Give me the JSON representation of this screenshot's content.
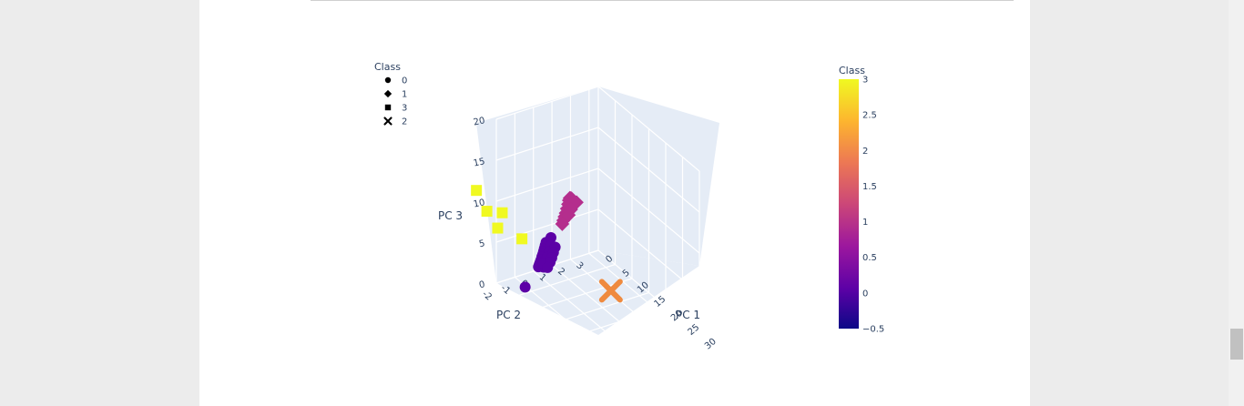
{
  "chart_data": {
    "type": "scatter3d",
    "axes": {
      "x": {
        "label": "PC 1",
        "ticks": [
          "0",
          "5",
          "10",
          "15",
          "20",
          "25",
          "30"
        ]
      },
      "y": {
        "label": "PC 2",
        "ticks": [
          "-2",
          "-1",
          "0",
          "1",
          "2",
          "3"
        ]
      },
      "z": {
        "label": "PC 3",
        "ticks": [
          "0",
          "5",
          "10",
          "15",
          "20"
        ]
      }
    },
    "legend": {
      "title": "Class",
      "entries": [
        {
          "label": "0",
          "symbol": "circle"
        },
        {
          "label": "1",
          "symbol": "diamond"
        },
        {
          "label": "3",
          "symbol": "square"
        },
        {
          "label": "2",
          "symbol": "x"
        }
      ],
      "placement": "top-left"
    },
    "colorbar": {
      "title": "Class",
      "range": [
        -0.5,
        3
      ],
      "ticks": [
        "3",
        "2.5",
        "2",
        "1.5",
        "1",
        "0.5",
        "0",
        "−0.5"
      ],
      "colors": [
        "#0d0887",
        "#5c01a6",
        "#9c179e",
        "#cc4778",
        "#ed7953",
        "#fdb42f",
        "#f0f921"
      ]
    },
    "series": [
      {
        "name": "0",
        "symbol": "circle",
        "color": "#5c01a6",
        "points": [
          [
            1.0,
            0.5,
            3.5
          ],
          [
            1.3,
            0.4,
            3.3
          ],
          [
            1.6,
            0.3,
            3.1
          ],
          [
            1.9,
            0.2,
            2.9
          ],
          [
            2.2,
            0.1,
            2.7
          ],
          [
            2.5,
            0.0,
            2.6
          ],
          [
            2.8,
            -0.1,
            2.4
          ],
          [
            3.1,
            -0.2,
            2.3
          ],
          [
            3.4,
            -0.3,
            2.2
          ],
          [
            3.7,
            -0.4,
            2.1
          ],
          [
            1.2,
            0.7,
            3.0
          ],
          [
            1.8,
            0.5,
            2.6
          ],
          [
            2.4,
            0.3,
            2.3
          ],
          [
            3.0,
            0.1,
            2.0
          ],
          [
            3.6,
            -0.1,
            1.8
          ],
          [
            0.8,
            0.8,
            3.8
          ],
          [
            2.0,
            0.6,
            3.4
          ],
          [
            2.6,
            0.4,
            3.0
          ],
          [
            3.2,
            0.2,
            2.7
          ],
          [
            4.0,
            -0.2,
            2.5
          ],
          [
            1.5,
            0.9,
            2.8
          ],
          [
            2.1,
            0.7,
            2.5
          ],
          [
            2.7,
            0.5,
            2.2
          ],
          [
            3.3,
            0.3,
            2.0
          ],
          [
            4.2,
            0.0,
            1.9
          ],
          [
            8.0,
            -1.9,
            2.2
          ]
        ]
      },
      {
        "name": "1",
        "symbol": "diamond",
        "color": "#b42e8d",
        "points": [
          [
            -0.8,
            2.2,
            7.0
          ],
          [
            -0.5,
            2.1,
            7.2
          ],
          [
            -0.2,
            2.0,
            7.4
          ],
          [
            0.1,
            1.9,
            7.3
          ],
          [
            0.4,
            1.8,
            7.0
          ],
          [
            0.6,
            1.7,
            6.6
          ],
          [
            0.8,
            1.6,
            6.2
          ],
          [
            1.0,
            1.5,
            5.9
          ],
          [
            1.2,
            1.4,
            5.6
          ],
          [
            1.4,
            1.3,
            5.3
          ],
          [
            -1.5,
            2.6,
            6.0
          ],
          [
            -0.3,
            2.3,
            6.6
          ],
          [
            0.2,
            2.1,
            6.8
          ],
          [
            0.7,
            1.9,
            6.4
          ],
          [
            1.1,
            1.7,
            6.0
          ]
        ]
      },
      {
        "name": "3",
        "symbol": "square",
        "color": "#f0f921",
        "points": [
          [
            4.0,
            -3.8,
            14.0
          ],
          [
            6.0,
            -3.6,
            12.0
          ],
          [
            4.5,
            -2.5,
            10.5
          ],
          [
            7.0,
            -3.2,
            10.0
          ],
          [
            6.5,
            -1.8,
            7.5
          ]
        ]
      },
      {
        "name": "2",
        "symbol": "x",
        "color": "#ef8a3e",
        "points": [
          [
            12.0,
            2.0,
            0.3
          ]
        ]
      }
    ]
  }
}
